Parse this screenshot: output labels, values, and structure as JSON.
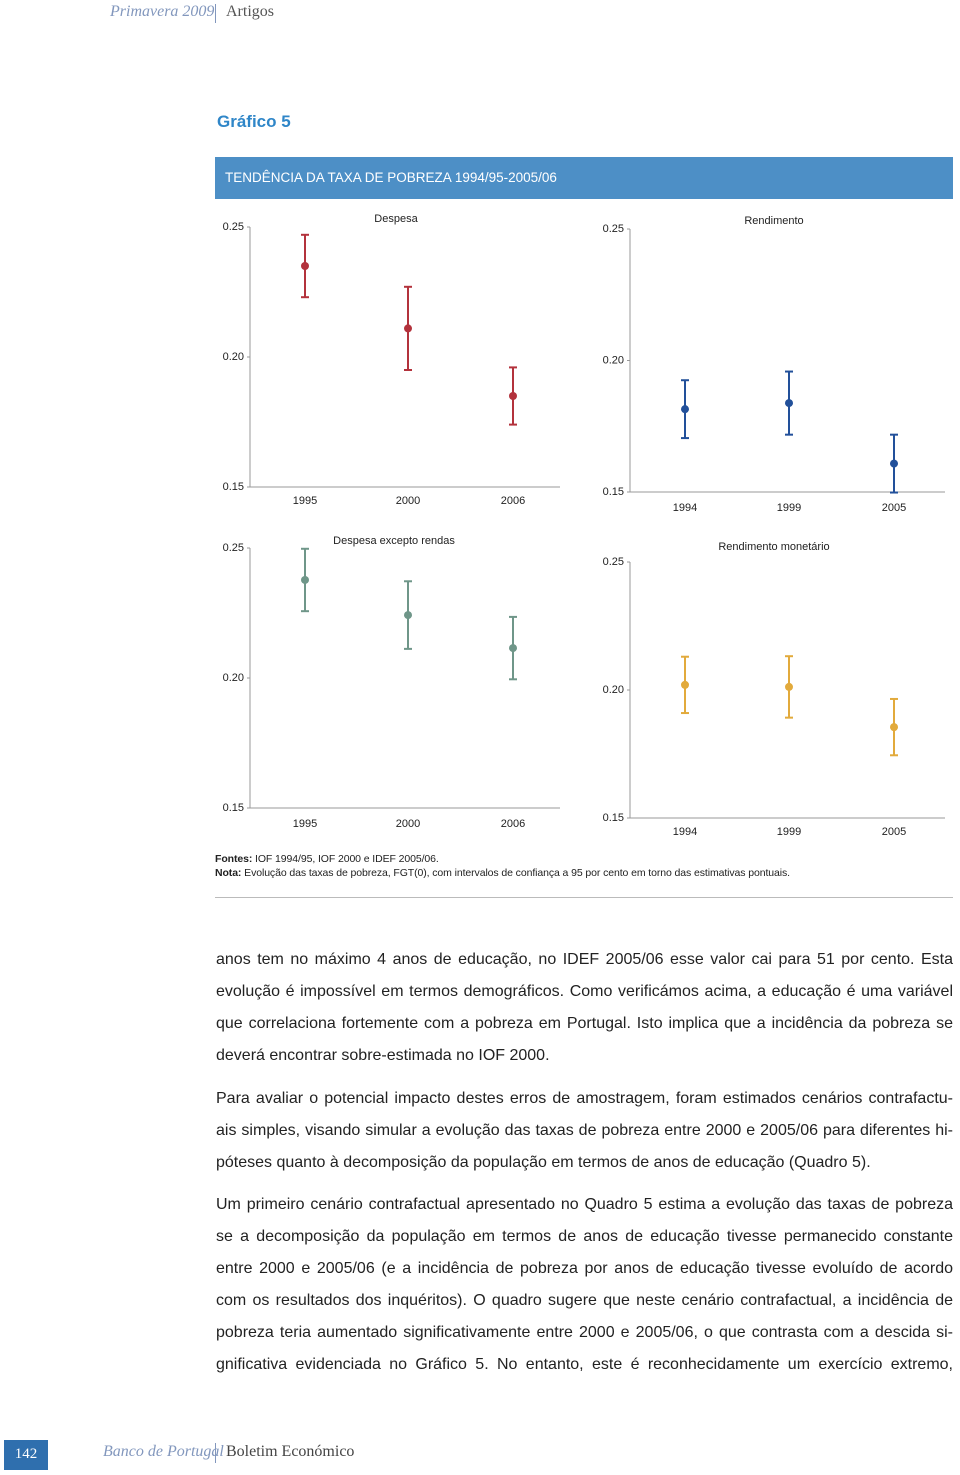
{
  "header": {
    "issue": "Primavera 2009",
    "section": "Artigos"
  },
  "figure": {
    "title": "Gráfico 5",
    "heading": "TENDÊNCIA DA TAXA DE POBREZA 1994/95-2005/06"
  },
  "chart_data": [
    {
      "type": "errorbar",
      "title": "Despesa",
      "categories": [
        "1995",
        "2000",
        "2006"
      ],
      "values": [
        0.235,
        0.211,
        0.185
      ],
      "errors": [
        0.012,
        0.016,
        0.011
      ],
      "color": "#b3323c",
      "ylim": [
        0.15,
        0.25
      ],
      "yticks": [
        0.15,
        {
          "value": 0.2,
          "label": "0.20"
        },
        0.25
      ]
    },
    {
      "type": "errorbar",
      "title": "Rendimento",
      "categories": [
        "1994",
        "1999",
        "2005"
      ],
      "values": [
        0.1815,
        0.1838,
        0.1608
      ],
      "errors": [
        0.011,
        0.012,
        0.011
      ],
      "color": "#22509a",
      "ylim": [
        0.15,
        0.25
      ],
      "yticks": [
        0.15,
        {
          "value": 0.2,
          "label": "0.20"
        },
        0.25
      ]
    },
    {
      "type": "errorbar",
      "title": "Despesa excepto rendas",
      "categories": [
        "1995",
        "2000",
        "2006"
      ],
      "values": [
        0.2377,
        0.2242,
        0.2115
      ],
      "errors": [
        0.012,
        0.013,
        0.012
      ],
      "color": "#6f9689",
      "ylim": [
        0.15,
        0.25
      ],
      "yticks": [
        0.15,
        {
          "value": 0.2,
          "label": "0.20"
        },
        0.25
      ]
    },
    {
      "type": "errorbar",
      "title": "Rendimento monetário",
      "categories": [
        "1994",
        "1999",
        "2005"
      ],
      "values": [
        0.202,
        0.2012,
        0.1855
      ],
      "errors": [
        0.011,
        0.012,
        0.011
      ],
      "color": "#e2aa3c",
      "ylim": [
        0.15,
        0.25
      ],
      "yticks": [
        0.15,
        {
          "value": 0.2,
          "label": "0.20"
        },
        0.25
      ]
    }
  ],
  "notes": {
    "sources_label": "Fontes:",
    "sources": "IOF 1994/95, IOF 2000 e IDEF 2005/06.",
    "note_label": "Nota:",
    "note": "Evolução das taxas de pobreza, FGT(0), com intervalos de confiança a 95 por cento em torno das estimativas pontuais."
  },
  "body": [
    [
      "anos tem no máximo 4 anos de educação, no IDEF 2005/06 esse valor cai para 51 por cento. Esta",
      "evolução é impossível em termos demográficos. Como verificámos acima, a educação é uma variável",
      "que correlaciona fortemente com a pobreza em Portugal. Isto implica que a incidência da pobreza se",
      "deverá encontrar sobre-estimada no IOF 2000."
    ],
    [
      "Para avaliar o potencial impacto destes erros de amostragem, foram estimados cenários contrafactu-",
      "ais simples, visando simular a evolução das taxas de pobreza entre 2000 e 2005/06 para diferentes hi-",
      "póteses quanto à decomposição da população em termos de anos de educação (Quadro 5)."
    ],
    [
      "Um primeiro cenário contrafactual apresentado no Quadro 5 estima a evolução das taxas de pobreza",
      "se a decomposição da população em termos de anos de educação tivesse permanecido constante",
      "entre 2000 e 2005/06 (e a incidência de pobreza por anos de educação tivesse evoluído de acordo",
      "com os resultados dos inquéritos). O quadro sugere que neste cenário contrafactual, a incidência de",
      "pobreza teria aumentado significativamente entre 2000 e 2005/06, o que contrasta com a descida si-",
      "gnificativa evidenciada no Gráfico 5. No entanto, este é reconhecidamente um exercício extremo,"
    ]
  ],
  "footer": {
    "page": "142",
    "publisher": "Banco de Portugal",
    "publication": "Boletim Económico"
  }
}
